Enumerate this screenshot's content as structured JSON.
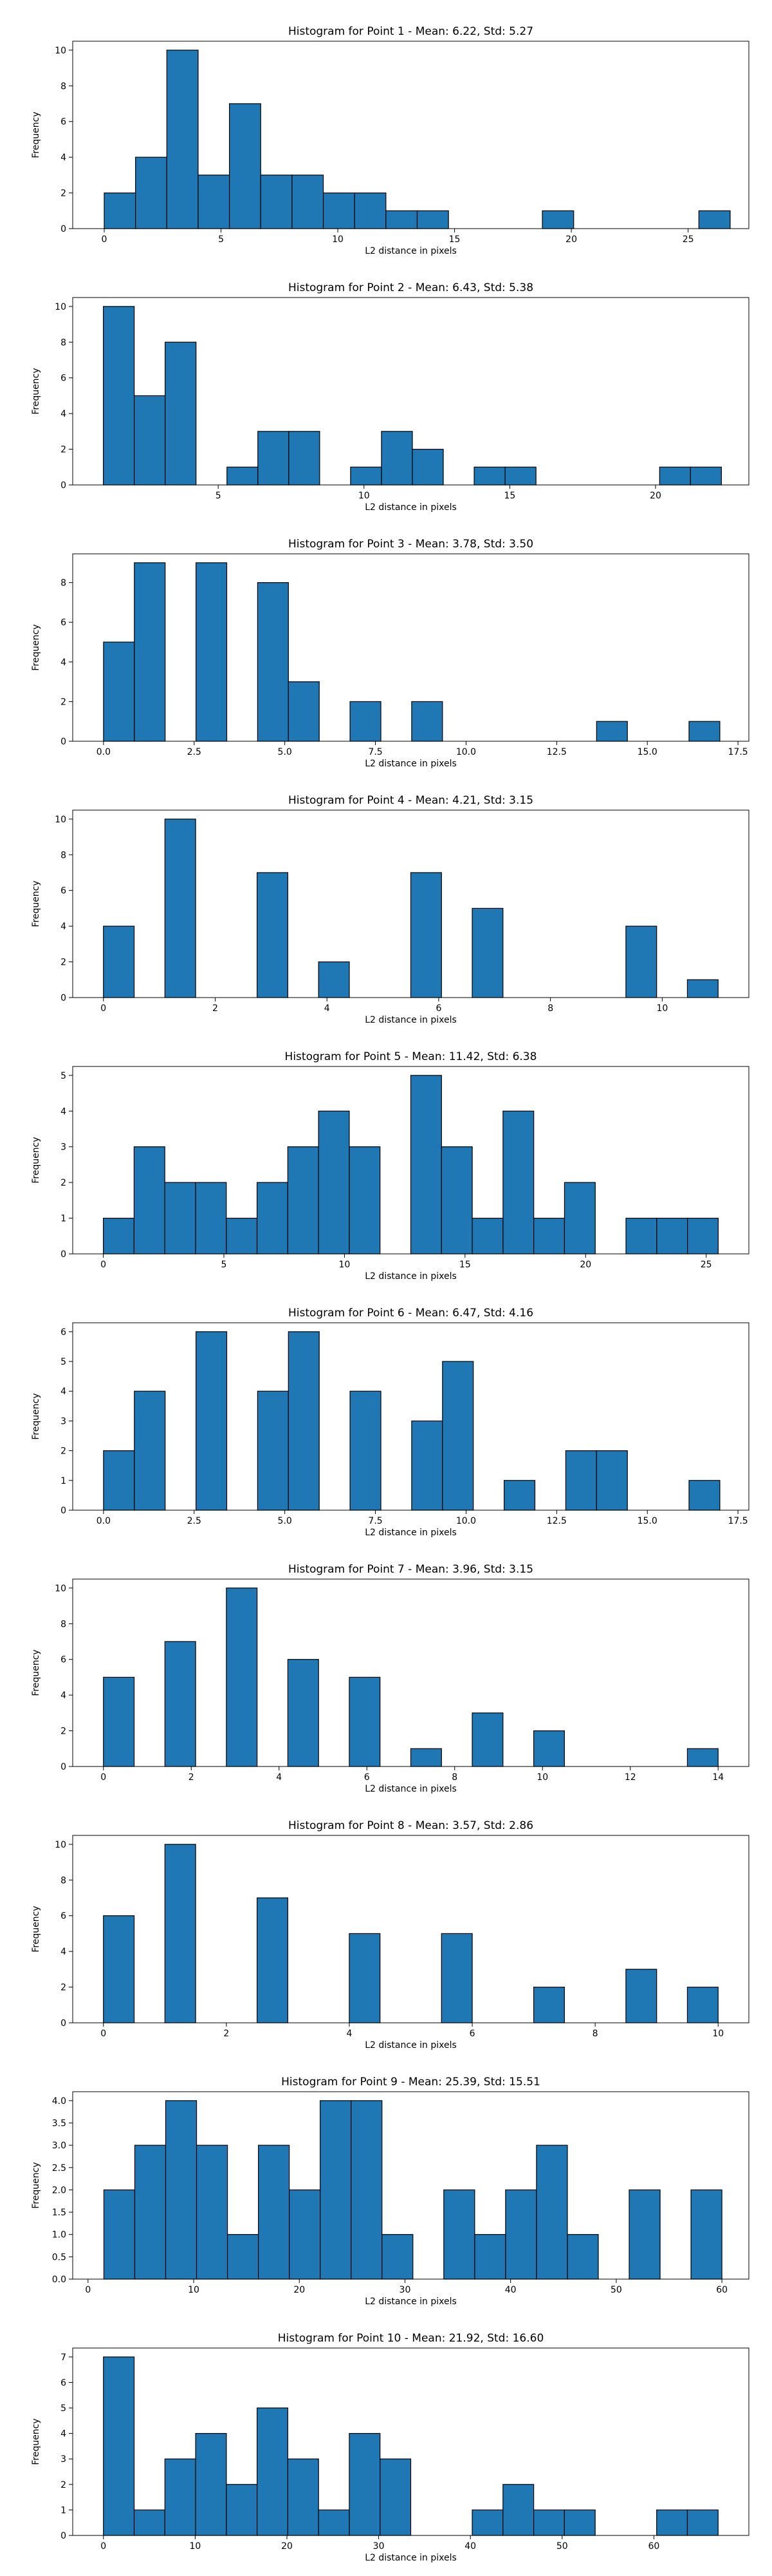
{
  "chart_data": [
    {
      "type": "bar",
      "title": "Histogram for Point 1 - Mean: 6.22, Std: 5.27",
      "xlabel": "L2 distance in pixels",
      "ylabel": "Frequency",
      "xlim": [
        -1.35,
        27.6
      ],
      "ylim": [
        0,
        10.5
      ],
      "bin_edges": [
        0.0,
        1.34,
        2.68,
        4.02,
        5.36,
        6.7,
        8.04,
        9.38,
        10.72,
        12.06,
        13.4,
        14.74,
        16.08,
        17.42,
        18.76,
        20.1,
        21.44,
        22.78,
        24.12,
        25.46,
        26.8
      ],
      "counts": [
        2,
        4,
        10,
        3,
        7,
        3,
        3,
        2,
        2,
        1,
        1,
        0,
        0,
        0,
        1,
        0,
        0,
        0,
        0,
        1
      ],
      "xticks": [
        {
          "v": 0,
          "label": "0"
        },
        {
          "v": 5,
          "label": "5"
        },
        {
          "v": 10,
          "label": "10"
        },
        {
          "v": 15,
          "label": "15"
        },
        {
          "v": 20,
          "label": "20"
        },
        {
          "v": 25,
          "label": "25"
        }
      ],
      "yticks": [
        {
          "v": 0,
          "label": "0"
        },
        {
          "v": 2,
          "label": "2"
        },
        {
          "v": 4,
          "label": "4"
        },
        {
          "v": 6,
          "label": "6"
        },
        {
          "v": 8,
          "label": "8"
        },
        {
          "v": 10,
          "label": "10"
        }
      ]
    },
    {
      "type": "bar",
      "title": "Histogram for Point 2 - Mean: 6.43, Std: 5.38",
      "xlabel": "L2 distance in pixels",
      "ylabel": "Frequency",
      "xlim": [
        0.01,
        23.2
      ],
      "ylim": [
        0,
        10.5
      ],
      "bin_edges": [
        1.06,
        2.12,
        3.18,
        4.24,
        5.3,
        6.36,
        7.42,
        8.48,
        9.54,
        10.6,
        11.66,
        12.72,
        13.78,
        14.84,
        15.9,
        16.96,
        18.02,
        19.08,
        20.14,
        21.2,
        22.26
      ],
      "counts": [
        10,
        5,
        8,
        0,
        1,
        3,
        3,
        0,
        1,
        3,
        2,
        0,
        1,
        1,
        0,
        0,
        0,
        0,
        1,
        1
      ],
      "xticks": [
        {
          "v": 5,
          "label": "5"
        },
        {
          "v": 10,
          "label": "10"
        },
        {
          "v": 15,
          "label": "15"
        },
        {
          "v": 20,
          "label": "20"
        }
      ],
      "yticks": [
        {
          "v": 0,
          "label": "0"
        },
        {
          "v": 2,
          "label": "2"
        },
        {
          "v": 4,
          "label": "4"
        },
        {
          "v": 6,
          "label": "6"
        },
        {
          "v": 8,
          "label": "8"
        },
        {
          "v": 10,
          "label": "10"
        }
      ]
    },
    {
      "type": "bar",
      "title": "Histogram for Point 3 - Mean: 3.78, Std: 3.50",
      "xlabel": "L2 distance in pixels",
      "ylabel": "Frequency",
      "xlim": [
        -0.85,
        17.8
      ],
      "ylim": [
        0,
        9.45
      ],
      "bin_edges": [
        0.0,
        0.85,
        1.7,
        2.55,
        3.4,
        4.25,
        5.1,
        5.95,
        6.8,
        7.65,
        8.5,
        9.35,
        10.2,
        11.05,
        11.9,
        12.75,
        13.6,
        14.45,
        15.3,
        16.15,
        17.0
      ],
      "counts": [
        5,
        9,
        0,
        9,
        0,
        8,
        3,
        0,
        2,
        0,
        2,
        0,
        0,
        0,
        0,
        0,
        1,
        0,
        0,
        1
      ],
      "xticks": [
        {
          "v": 0,
          "label": "0.0"
        },
        {
          "v": 2.5,
          "label": "2.5"
        },
        {
          "v": 5,
          "label": "5.0"
        },
        {
          "v": 7.5,
          "label": "7.5"
        },
        {
          "v": 10,
          "label": "10.0"
        },
        {
          "v": 12.5,
          "label": "12.5"
        },
        {
          "v": 15,
          "label": "15.0"
        },
        {
          "v": 17.5,
          "label": "17.5"
        }
      ],
      "yticks": [
        {
          "v": 0,
          "label": "0"
        },
        {
          "v": 2,
          "label": "2"
        },
        {
          "v": 4,
          "label": "4"
        },
        {
          "v": 6,
          "label": "6"
        },
        {
          "v": 8,
          "label": "8"
        }
      ]
    },
    {
      "type": "bar",
      "title": "Histogram for Point 4 - Mean: 4.21, Std: 3.15",
      "xlabel": "L2 distance in pixels",
      "ylabel": "Frequency",
      "xlim": [
        -0.55,
        11.55
      ],
      "ylim": [
        0,
        10.5
      ],
      "bin_edges": [
        0.0,
        0.55,
        1.1,
        1.65,
        2.2,
        2.75,
        3.3,
        3.85,
        4.4,
        4.95,
        5.5,
        6.05,
        6.6,
        7.15,
        7.7,
        8.25,
        8.8,
        9.35,
        9.9,
        10.45,
        11.0
      ],
      "counts": [
        4,
        0,
        10,
        0,
        0,
        7,
        0,
        2,
        0,
        0,
        7,
        0,
        5,
        0,
        0,
        0,
        0,
        4,
        0,
        1
      ],
      "xticks": [
        {
          "v": 0,
          "label": "0"
        },
        {
          "v": 2,
          "label": "2"
        },
        {
          "v": 4,
          "label": "4"
        },
        {
          "v": 6,
          "label": "6"
        },
        {
          "v": 8,
          "label": "8"
        },
        {
          "v": 10,
          "label": "10"
        }
      ],
      "yticks": [
        {
          "v": 0,
          "label": "0"
        },
        {
          "v": 2,
          "label": "2"
        },
        {
          "v": 4,
          "label": "4"
        },
        {
          "v": 6,
          "label": "6"
        },
        {
          "v": 8,
          "label": "8"
        },
        {
          "v": 10,
          "label": "10"
        }
      ]
    },
    {
      "type": "bar",
      "title": "Histogram for Point 5 - Mean: 11.42, Std: 6.38",
      "xlabel": "L2 distance in pixels",
      "ylabel": "Frequency",
      "xlim": [
        -1.27,
        26.77
      ],
      "ylim": [
        0,
        5.25
      ],
      "bin_edges": [
        0.0,
        1.275,
        2.55,
        3.825,
        5.1,
        6.375,
        7.65,
        8.925,
        10.2,
        11.475,
        12.75,
        14.025,
        15.3,
        16.575,
        17.85,
        19.125,
        20.4,
        21.675,
        22.95,
        24.225,
        25.5
      ],
      "counts": [
        1,
        3,
        2,
        2,
        1,
        2,
        3,
        4,
        3,
        0,
        5,
        3,
        1,
        4,
        1,
        2,
        0,
        1,
        1,
        1
      ],
      "xticks": [
        {
          "v": 0,
          "label": "0"
        },
        {
          "v": 5,
          "label": "5"
        },
        {
          "v": 10,
          "label": "10"
        },
        {
          "v": 15,
          "label": "15"
        },
        {
          "v": 20,
          "label": "20"
        },
        {
          "v": 25,
          "label": "25"
        }
      ],
      "yticks": [
        {
          "v": 0,
          "label": "0"
        },
        {
          "v": 1,
          "label": "1"
        },
        {
          "v": 2,
          "label": "2"
        },
        {
          "v": 3,
          "label": "3"
        },
        {
          "v": 4,
          "label": "4"
        },
        {
          "v": 5,
          "label": "5"
        }
      ]
    },
    {
      "type": "bar",
      "title": "Histogram for Point 6 - Mean: 6.47, Std: 4.16",
      "xlabel": "L2 distance in pixels",
      "ylabel": "Frequency",
      "xlim": [
        -0.85,
        17.8
      ],
      "ylim": [
        0,
        6.3
      ],
      "bin_edges": [
        0.0,
        0.85,
        1.7,
        2.55,
        3.4,
        4.25,
        5.1,
        5.95,
        6.8,
        7.65,
        8.5,
        9.35,
        10.2,
        11.05,
        11.9,
        12.75,
        13.6,
        14.45,
        15.3,
        16.15,
        17.0
      ],
      "counts": [
        2,
        4,
        0,
        6,
        0,
        4,
        6,
        0,
        4,
        0,
        3,
        5,
        0,
        1,
        0,
        2,
        2,
        0,
        0,
        1
      ],
      "xticks": [
        {
          "v": 0,
          "label": "0.0"
        },
        {
          "v": 2.5,
          "label": "2.5"
        },
        {
          "v": 5,
          "label": "5.0"
        },
        {
          "v": 7.5,
          "label": "7.5"
        },
        {
          "v": 10,
          "label": "10.0"
        },
        {
          "v": 12.5,
          "label": "12.5"
        },
        {
          "v": 15,
          "label": "15.0"
        },
        {
          "v": 17.5,
          "label": "17.5"
        }
      ],
      "yticks": [
        {
          "v": 0,
          "label": "0"
        },
        {
          "v": 1,
          "label": "1"
        },
        {
          "v": 2,
          "label": "2"
        },
        {
          "v": 3,
          "label": "3"
        },
        {
          "v": 4,
          "label": "4"
        },
        {
          "v": 5,
          "label": "5"
        },
        {
          "v": 6,
          "label": "6"
        }
      ]
    },
    {
      "type": "bar",
      "title": "Histogram for Point 7 - Mean: 3.96, Std: 3.15",
      "xlabel": "L2 distance in pixels",
      "ylabel": "Frequency",
      "xlim": [
        -0.7,
        14.7
      ],
      "ylim": [
        0,
        10.5
      ],
      "bin_edges": [
        0.0,
        0.7,
        1.4,
        2.1,
        2.8,
        3.5,
        4.2,
        4.9,
        5.6,
        6.3,
        7.0,
        7.7,
        8.4,
        9.1,
        9.8,
        10.5,
        11.2,
        11.9,
        12.6,
        13.3,
        14.0
      ],
      "counts": [
        5,
        0,
        7,
        0,
        10,
        0,
        6,
        0,
        5,
        0,
        1,
        0,
        3,
        0,
        2,
        0,
        0,
        0,
        0,
        1
      ],
      "xticks": [
        {
          "v": 0,
          "label": "0"
        },
        {
          "v": 2,
          "label": "2"
        },
        {
          "v": 4,
          "label": "4"
        },
        {
          "v": 6,
          "label": "6"
        },
        {
          "v": 8,
          "label": "8"
        },
        {
          "v": 10,
          "label": "10"
        },
        {
          "v": 12,
          "label": "12"
        },
        {
          "v": 14,
          "label": "14"
        }
      ],
      "yticks": [
        {
          "v": 0,
          "label": "0"
        },
        {
          "v": 2,
          "label": "2"
        },
        {
          "v": 4,
          "label": "4"
        },
        {
          "v": 6,
          "label": "6"
        },
        {
          "v": 8,
          "label": "8"
        },
        {
          "v": 10,
          "label": "10"
        }
      ]
    },
    {
      "type": "bar",
      "title": "Histogram for Point 8 - Mean: 3.57, Std: 2.86",
      "xlabel": "L2 distance in pixels",
      "ylabel": "Frequency",
      "xlim": [
        -0.5,
        10.5
      ],
      "ylim": [
        0,
        10.5
      ],
      "bin_edges": [
        0.0,
        0.5,
        1.0,
        1.5,
        2.0,
        2.5,
        3.0,
        3.5,
        4.0,
        4.5,
        5.0,
        5.5,
        6.0,
        6.5,
        7.0,
        7.5,
        8.0,
        8.5,
        9.0,
        9.5,
        10.0
      ],
      "counts": [
        6,
        0,
        10,
        0,
        0,
        7,
        0,
        0,
        5,
        0,
        0,
        5,
        0,
        0,
        2,
        0,
        0,
        3,
        0,
        2
      ],
      "xticks": [
        {
          "v": 0,
          "label": "0"
        },
        {
          "v": 2,
          "label": "2"
        },
        {
          "v": 4,
          "label": "4"
        },
        {
          "v": 6,
          "label": "6"
        },
        {
          "v": 8,
          "label": "8"
        },
        {
          "v": 10,
          "label": "10"
        }
      ],
      "yticks": [
        {
          "v": 0,
          "label": "0"
        },
        {
          "v": 2,
          "label": "2"
        },
        {
          "v": 4,
          "label": "4"
        },
        {
          "v": 6,
          "label": "6"
        },
        {
          "v": 8,
          "label": "8"
        },
        {
          "v": 10,
          "label": "10"
        }
      ]
    },
    {
      "type": "bar",
      "title": "Histogram for Point 9 - Mean: 25.39, Std: 15.51",
      "xlabel": "L2 distance in pixels",
      "ylabel": "Frequency",
      "xlim": [
        -1.45,
        62.55
      ],
      "ylim": [
        0,
        4.2
      ],
      "bin_edges": [
        1.5,
        4.425,
        7.35,
        10.275,
        13.2,
        16.125,
        19.05,
        21.975,
        24.9,
        27.825,
        30.75,
        33.675,
        36.6,
        39.525,
        42.45,
        45.375,
        48.3,
        51.225,
        54.15,
        57.075,
        60.0
      ],
      "counts": [
        2,
        3,
        4,
        3,
        1,
        3,
        2,
        4,
        4,
        1,
        0,
        2,
        1,
        2,
        3,
        1,
        0,
        2,
        0,
        2
      ],
      "xticks": [
        {
          "v": 0,
          "label": "0"
        },
        {
          "v": 10,
          "label": "10"
        },
        {
          "v": 20,
          "label": "20"
        },
        {
          "v": 30,
          "label": "30"
        },
        {
          "v": 40,
          "label": "40"
        },
        {
          "v": 50,
          "label": "50"
        },
        {
          "v": 60,
          "label": "60"
        }
      ],
      "yticks": [
        {
          "v": 0,
          "label": "0.0"
        },
        {
          "v": 0.5,
          "label": "0.5"
        },
        {
          "v": 1,
          "label": "1.0"
        },
        {
          "v": 1.5,
          "label": "1.5"
        },
        {
          "v": 2,
          "label": "2.0"
        },
        {
          "v": 2.5,
          "label": "2.5"
        },
        {
          "v": 3,
          "label": "3.0"
        },
        {
          "v": 3.5,
          "label": "3.5"
        },
        {
          "v": 4,
          "label": "4.0"
        }
      ]
    },
    {
      "type": "bar",
      "title": "Histogram for Point 10 - Mean: 21.92, Std: 16.60",
      "xlabel": "L2 distance in pixels",
      "ylabel": "Frequency",
      "xlim": [
        -3.35,
        70.35
      ],
      "ylim": [
        0,
        7.35
      ],
      "bin_edges": [
        0.0,
        3.35,
        6.7,
        10.05,
        13.4,
        16.75,
        20.1,
        23.45,
        26.8,
        30.15,
        33.5,
        36.85,
        40.2,
        43.55,
        46.9,
        50.25,
        53.6,
        56.95,
        60.3,
        63.65,
        67.0
      ],
      "counts": [
        7,
        1,
        3,
        4,
        2,
        5,
        3,
        1,
        4,
        3,
        0,
        0,
        1,
        2,
        1,
        1,
        0,
        0,
        1,
        1
      ],
      "xticks": [
        {
          "v": 0,
          "label": "0"
        },
        {
          "v": 10,
          "label": "10"
        },
        {
          "v": 20,
          "label": "20"
        },
        {
          "v": 30,
          "label": "30"
        },
        {
          "v": 40,
          "label": "40"
        },
        {
          "v": 50,
          "label": "50"
        },
        {
          "v": 60,
          "label": "60"
        }
      ],
      "yticks": [
        {
          "v": 0,
          "label": "0"
        },
        {
          "v": 1,
          "label": "1"
        },
        {
          "v": 2,
          "label": "2"
        },
        {
          "v": 3,
          "label": "3"
        },
        {
          "v": 4,
          "label": "4"
        },
        {
          "v": 5,
          "label": "5"
        },
        {
          "v": 6,
          "label": "6"
        },
        {
          "v": 7,
          "label": "7"
        }
      ]
    }
  ]
}
